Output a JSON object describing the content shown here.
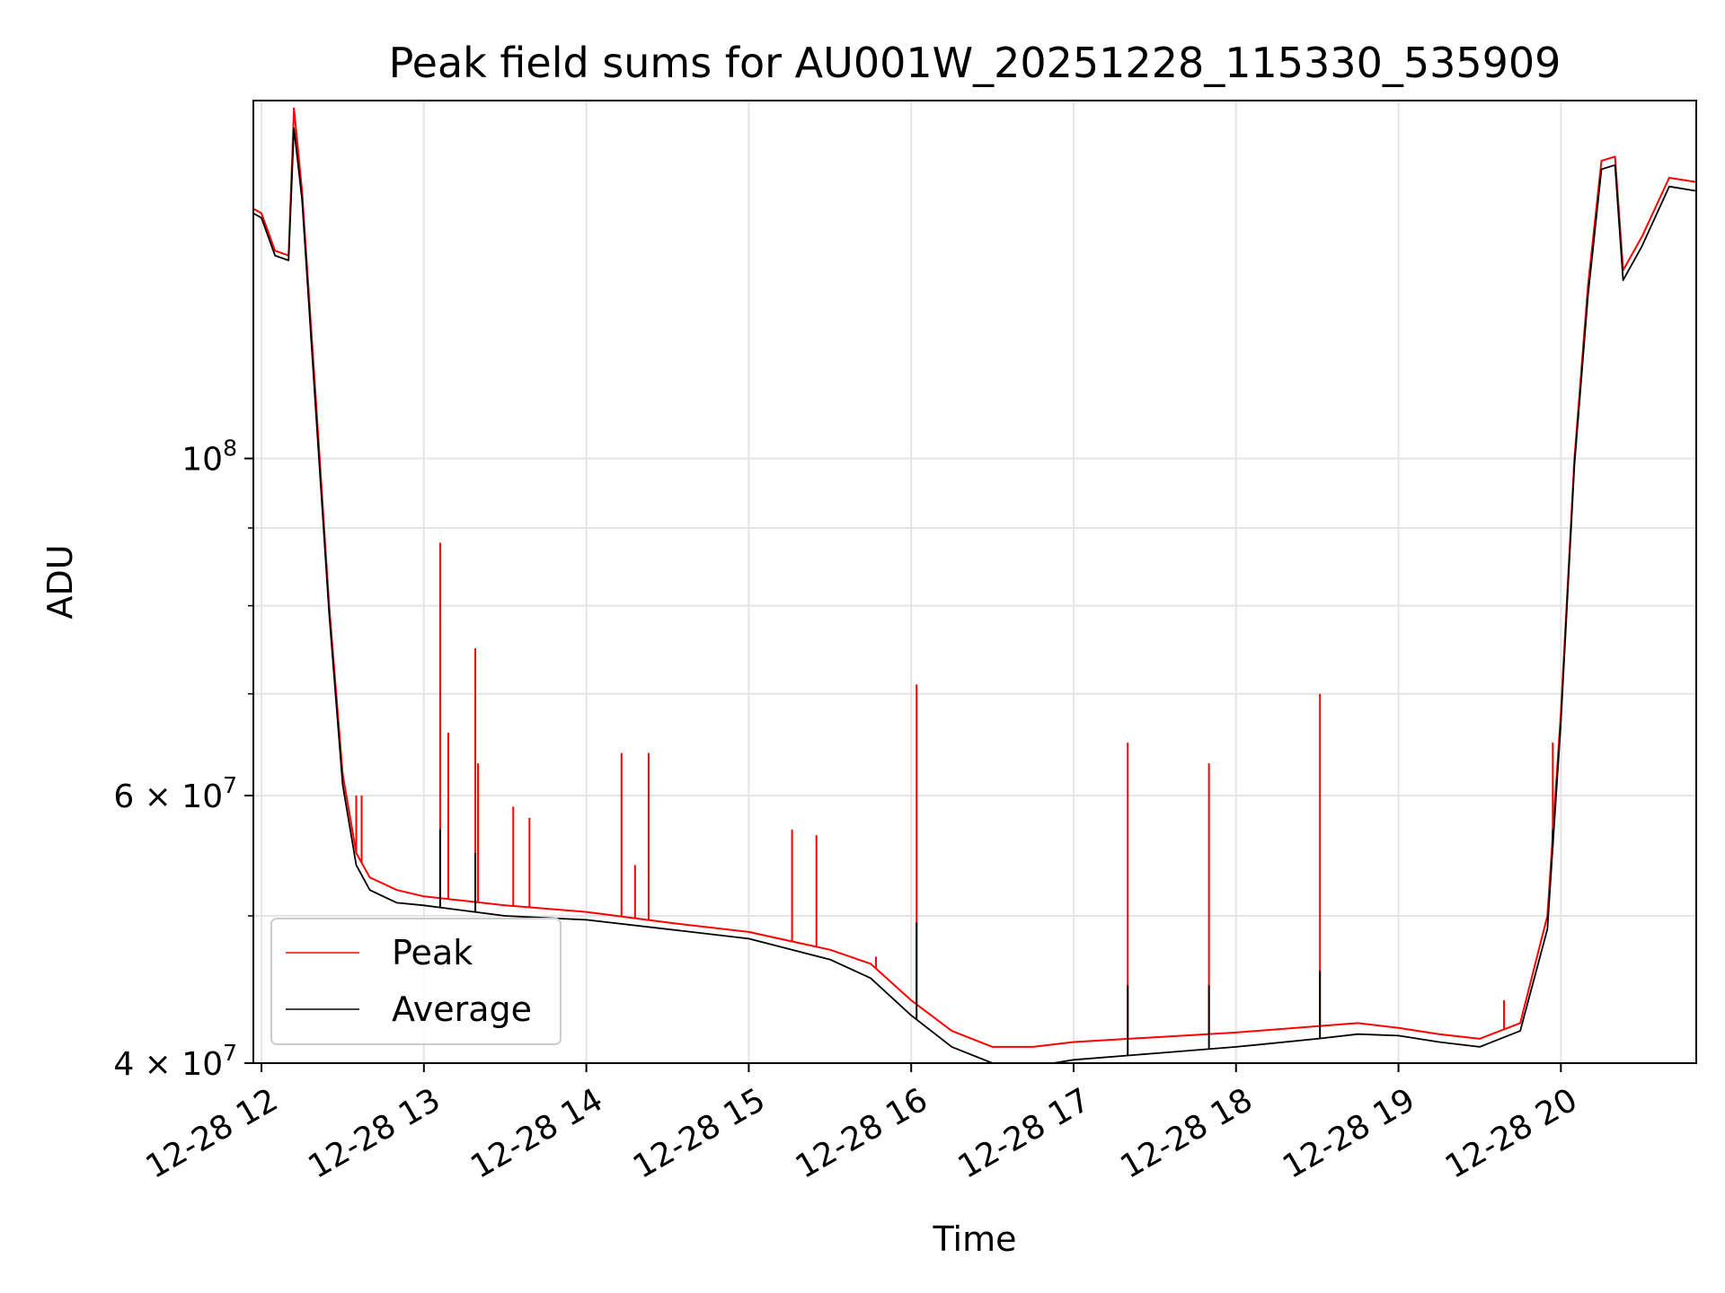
{
  "chart_data": {
    "type": "line",
    "title": "Peak field sums for AU001W_20251228_115330_535909",
    "xlabel": "Time",
    "ylabel": "ADU",
    "yscale": "log",
    "ylim": [
      40000000,
      172000000
    ],
    "xlim": [
      "2025-12-28 11:57",
      "2025-12-28 20:50"
    ],
    "grid": true,
    "legend_placement": "lower-left",
    "x_ticks": [
      {
        "value": "2025-12-28 12:00",
        "label": "12-28 12"
      },
      {
        "value": "2025-12-28 13:00",
        "label": "12-28 13"
      },
      {
        "value": "2025-12-28 14:00",
        "label": "12-28 14"
      },
      {
        "value": "2025-12-28 15:00",
        "label": "12-28 15"
      },
      {
        "value": "2025-12-28 16:00",
        "label": "12-28 16"
      },
      {
        "value": "2025-12-28 17:00",
        "label": "12-28 17"
      },
      {
        "value": "2025-12-28 18:00",
        "label": "12-28 18"
      },
      {
        "value": "2025-12-28 19:00",
        "label": "12-28 19"
      },
      {
        "value": "2025-12-28 20:00",
        "label": "12-28 20"
      }
    ],
    "y_ticks": [
      {
        "value": 40000000,
        "base": "4 × 10",
        "exp": "7"
      },
      {
        "value": 60000000,
        "base": "6 × 10",
        "exp": "7"
      },
      {
        "value": 100000000,
        "base": "10",
        "exp": "8"
      }
    ],
    "y_minor_ticks": [
      50000000,
      70000000,
      80000000,
      90000000,
      200000000
    ],
    "series": [
      {
        "name": "Peak",
        "color": "#ff0000",
        "x": [
          "2025-12-28 11:57",
          "2025-12-28 12:00",
          "2025-12-28 12:05",
          "2025-12-28 12:10",
          "2025-12-28 12:12",
          "2025-12-28 12:15",
          "2025-12-28 12:20",
          "2025-12-28 12:25",
          "2025-12-28 12:30",
          "2025-12-28 12:35",
          "2025-12-28 12:40",
          "2025-12-28 12:45",
          "2025-12-28 12:50",
          "2025-12-28 13:00",
          "2025-12-28 13:30",
          "2025-12-28 14:00",
          "2025-12-28 14:30",
          "2025-12-28 15:00",
          "2025-12-28 15:30",
          "2025-12-28 15:45",
          "2025-12-28 16:00",
          "2025-12-28 16:15",
          "2025-12-28 16:30",
          "2025-12-28 16:45",
          "2025-12-28 17:00",
          "2025-12-28 17:30",
          "2025-12-28 18:00",
          "2025-12-28 18:30",
          "2025-12-28 18:45",
          "2025-12-28 19:00",
          "2025-12-28 19:15",
          "2025-12-28 19:30",
          "2025-12-28 19:45",
          "2025-12-28 19:55",
          "2025-12-28 20:00",
          "2025-12-28 20:05",
          "2025-12-28 20:10",
          "2025-12-28 20:15",
          "2025-12-28 20:20",
          "2025-12-28 20:23",
          "2025-12-28 20:30",
          "2025-12-28 20:40",
          "2025-12-28 20:50"
        ],
        "y": [
          146000000,
          145000000,
          137000000,
          136000000,
          170000000,
          150000000,
          110000000,
          80000000,
          62000000,
          55000000,
          53000000,
          52500000,
          52000000,
          51500000,
          50800000,
          50300000,
          49500000,
          48800000,
          47500000,
          46500000,
          44000000,
          42000000,
          41000000,
          41000000,
          41300000,
          41600000,
          41900000,
          42300000,
          42500000,
          42200000,
          41800000,
          41500000,
          42500000,
          50000000,
          68000000,
          100000000,
          130000000,
          157000000,
          158000000,
          133000000,
          140000000,
          153000000,
          152000000
        ],
        "spikes": [
          {
            "x": "2025-12-28 12:35",
            "y": 60000000
          },
          {
            "x": "2025-12-28 12:37",
            "y": 60000000
          },
          {
            "x": "2025-12-28 13:06",
            "y": 88000000
          },
          {
            "x": "2025-12-28 13:09",
            "y": 66000000
          },
          {
            "x": "2025-12-28 13:19",
            "y": 75000000
          },
          {
            "x": "2025-12-28 13:20",
            "y": 63000000
          },
          {
            "x": "2025-12-28 13:33",
            "y": 59000000
          },
          {
            "x": "2025-12-28 13:39",
            "y": 58000000
          },
          {
            "x": "2025-12-28 14:13",
            "y": 64000000
          },
          {
            "x": "2025-12-28 14:18",
            "y": 54000000
          },
          {
            "x": "2025-12-28 14:23",
            "y": 64000000
          },
          {
            "x": "2025-12-28 15:16",
            "y": 57000000
          },
          {
            "x": "2025-12-28 15:25",
            "y": 56500000
          },
          {
            "x": "2025-12-28 15:47",
            "y": 47000000
          },
          {
            "x": "2025-12-28 16:02",
            "y": 71000000
          },
          {
            "x": "2025-12-28 17:20",
            "y": 65000000
          },
          {
            "x": "2025-12-28 17:50",
            "y": 63000000
          },
          {
            "x": "2025-12-28 18:31",
            "y": 70000000
          },
          {
            "x": "2025-12-28 19:39",
            "y": 44000000
          },
          {
            "x": "2025-12-28 19:57",
            "y": 65000000
          }
        ]
      },
      {
        "name": "Average",
        "color": "#000000",
        "x": [
          "2025-12-28 11:57",
          "2025-12-28 12:00",
          "2025-12-28 12:05",
          "2025-12-28 12:10",
          "2025-12-28 12:12",
          "2025-12-28 12:15",
          "2025-12-28 12:20",
          "2025-12-28 12:25",
          "2025-12-28 12:30",
          "2025-12-28 12:35",
          "2025-12-28 12:40",
          "2025-12-28 12:45",
          "2025-12-28 12:50",
          "2025-12-28 13:00",
          "2025-12-28 13:30",
          "2025-12-28 14:00",
          "2025-12-28 14:30",
          "2025-12-28 15:00",
          "2025-12-28 15:30",
          "2025-12-28 15:45",
          "2025-12-28 16:00",
          "2025-12-28 16:15",
          "2025-12-28 16:30",
          "2025-12-28 16:45",
          "2025-12-28 17:00",
          "2025-12-28 17:30",
          "2025-12-28 18:00",
          "2025-12-28 18:30",
          "2025-12-28 18:45",
          "2025-12-28 19:00",
          "2025-12-28 19:15",
          "2025-12-28 19:30",
          "2025-12-28 19:45",
          "2025-12-28 19:55",
          "2025-12-28 20:00",
          "2025-12-28 20:05",
          "2025-12-28 20:10",
          "2025-12-28 20:15",
          "2025-12-28 20:20",
          "2025-12-28 20:23",
          "2025-12-28 20:30",
          "2025-12-28 20:40",
          "2025-12-28 20:50"
        ],
        "y": [
          145000000,
          144000000,
          136000000,
          135000000,
          165000000,
          148000000,
          108000000,
          79000000,
          61000000,
          54000000,
          52000000,
          51500000,
          51000000,
          50800000,
          50000000,
          49700000,
          49000000,
          48300000,
          46800000,
          45500000,
          43000000,
          41000000,
          40000000,
          39800000,
          40200000,
          40600000,
          41000000,
          41500000,
          41800000,
          41700000,
          41300000,
          41000000,
          42000000,
          49000000,
          67000000,
          99000000,
          128000000,
          155000000,
          156000000,
          131000000,
          138000000,
          151000000,
          150000000
        ],
        "spikes": [
          {
            "x": "2025-12-28 13:06",
            "y": 57000000
          },
          {
            "x": "2025-12-28 13:19",
            "y": 55000000
          },
          {
            "x": "2025-12-28 16:02",
            "y": 49500000
          },
          {
            "x": "2025-12-28 17:20",
            "y": 45000000
          },
          {
            "x": "2025-12-28 17:50",
            "y": 45000000
          },
          {
            "x": "2025-12-28 18:31",
            "y": 46000000
          },
          {
            "x": "2025-12-28 19:57",
            "y": 57000000
          }
        ]
      }
    ]
  }
}
